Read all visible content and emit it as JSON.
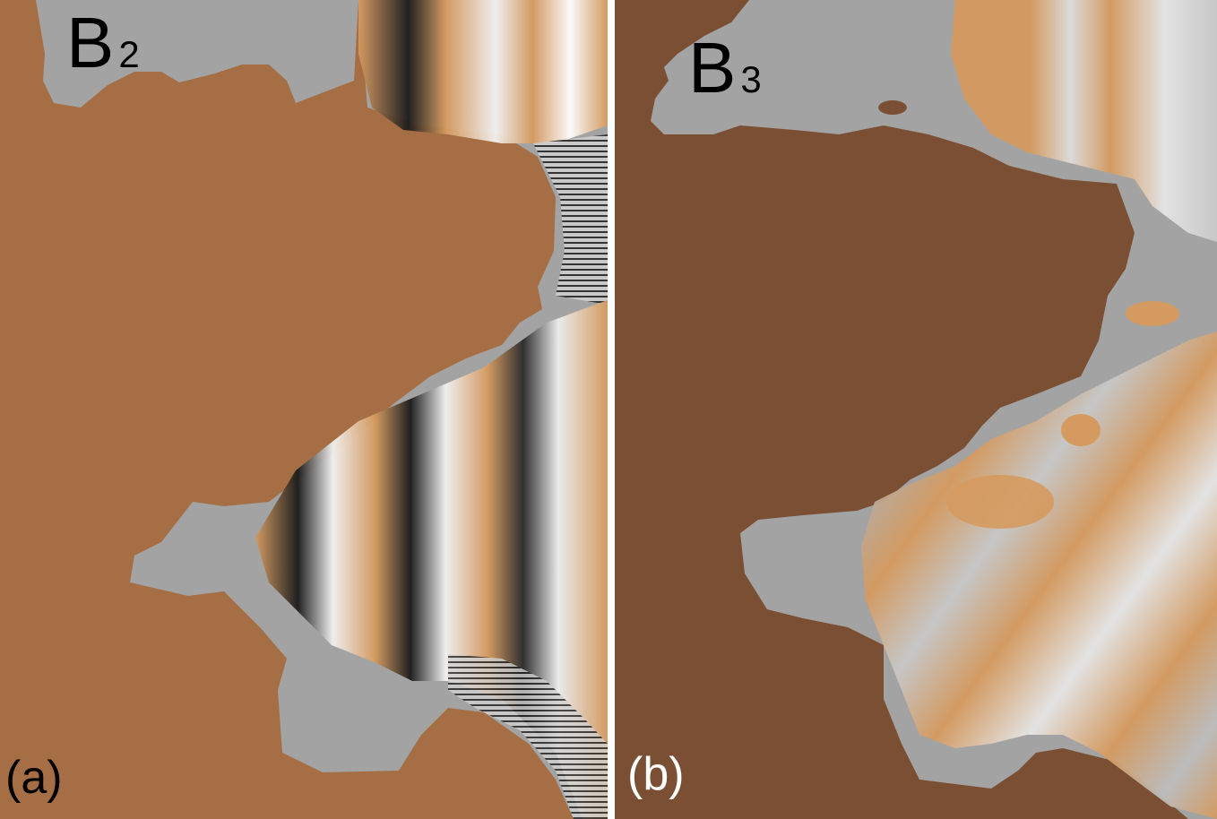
{
  "colors": {
    "land_a": "#a56e44",
    "land_b": "#7a4f33",
    "water": "#a3a3a3",
    "wave_orange": "#d59a5f",
    "wave_white": "#f2f2f2",
    "wave_dark": "#1a1a1a",
    "separator": "#ffffff"
  },
  "panels": [
    {
      "id": "a",
      "label_main": "B",
      "label_sub": "2",
      "tag": "(a)"
    },
    {
      "id": "b",
      "label_main": "B",
      "label_sub": "3",
      "tag": "(b)"
    }
  ]
}
